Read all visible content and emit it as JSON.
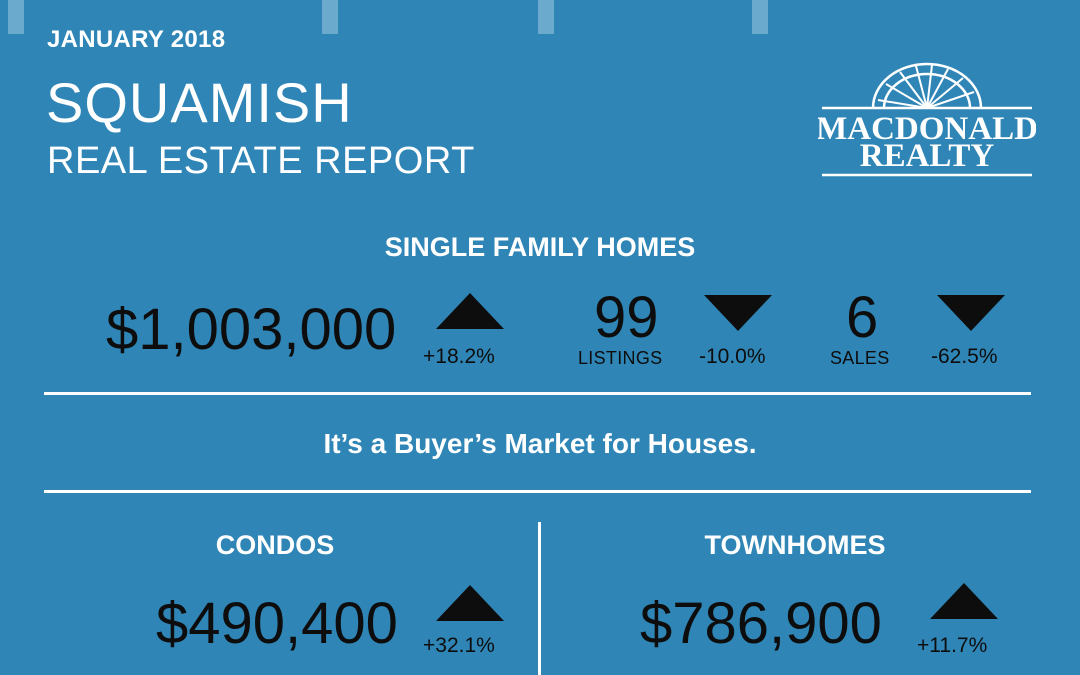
{
  "header": {
    "date": "JANUARY 2018",
    "city": "SQUAMISH",
    "subtitle": "REAL ESTATE REPORT"
  },
  "logo": {
    "line1": "MACDONALD",
    "line2": "REALTY"
  },
  "single_family": {
    "heading": "SINGLE FAMILY HOMES",
    "price": "$1,003,000",
    "price_change": "+18.2%",
    "price_trend": "up",
    "listings_value": "99",
    "listings_label": "LISTINGS",
    "listings_change": "-10.0%",
    "listings_trend": "down",
    "sales_value": "6",
    "sales_label": "SALES",
    "sales_change": "-62.5%",
    "sales_trend": "down"
  },
  "market_note": "It’s a Buyer’s Market for Houses.",
  "condos": {
    "heading": "CONDOS",
    "price": "$490,400",
    "price_change": "+32.1%",
    "price_trend": "up"
  },
  "townhomes": {
    "heading": "TOWNHOMES",
    "price": "$786,900",
    "price_change": "+11.7%",
    "price_trend": "up"
  },
  "colors": {
    "background": "#2f86b6",
    "text_light": "#ffffff",
    "text_dark": "#0d0d0d"
  }
}
